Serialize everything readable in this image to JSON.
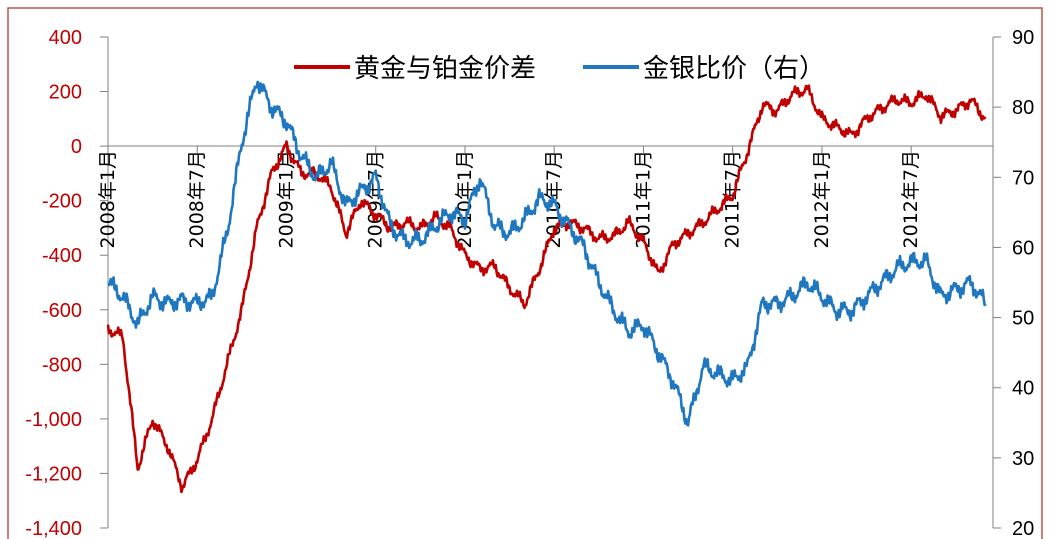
{
  "chart_data": {
    "type": "line",
    "title": "",
    "xlabel": "",
    "ylabel": "",
    "y2label": "",
    "x_ticks": [
      "2008年1月",
      "2008年7月",
      "2009年1月",
      "2009年7月",
      "2010年1月",
      "2010年7月",
      "2011年1月",
      "2011年7月",
      "2012年1月",
      "2012年7月"
    ],
    "y_left": {
      "ticks": [
        "400",
        "200",
        "0",
        "-200",
        "-400",
        "-600",
        "-800",
        "-1,000",
        "-1,200",
        "-1,400"
      ],
      "range": [
        -1400,
        400
      ],
      "color": "#c00000"
    },
    "y_right": {
      "ticks": [
        "90",
        "80",
        "70",
        "60",
        "50",
        "40",
        "30",
        "20"
      ],
      "range": [
        20,
        90
      ],
      "color": "#000000"
    },
    "legend_placement": "top-center",
    "grid": false,
    "series": [
      {
        "name": "黄金与铂金价差",
        "axis": "left",
        "color": "#c00000",
        "points": [
          [
            "2008-01",
            -670
          ],
          [
            "2008-02",
            -700
          ],
          [
            "2008-03",
            -1180
          ],
          [
            "2008-04",
            -1000
          ],
          [
            "2008-05",
            -1100
          ],
          [
            "2008-06",
            -1250
          ],
          [
            "2008-07",
            -1150
          ],
          [
            "2008-08",
            -1000
          ],
          [
            "2008-09",
            -800
          ],
          [
            "2008-10",
            -600
          ],
          [
            "2008-11",
            -300
          ],
          [
            "2008-12",
            -100
          ],
          [
            "2009-01",
            0
          ],
          [
            "2009-02",
            -100
          ],
          [
            "2009-03",
            -100
          ],
          [
            "2009-04",
            -150
          ],
          [
            "2009-05",
            -320
          ],
          [
            "2009-06",
            -200
          ],
          [
            "2009-07",
            -250
          ],
          [
            "2009-08",
            -300
          ],
          [
            "2009-09",
            -280
          ],
          [
            "2009-10",
            -300
          ],
          [
            "2009-11",
            -260
          ],
          [
            "2009-12",
            -300
          ],
          [
            "2010-01",
            -400
          ],
          [
            "2010-02",
            -450
          ],
          [
            "2010-03",
            -440
          ],
          [
            "2010-04",
            -520
          ],
          [
            "2010-05",
            -580
          ],
          [
            "2010-06",
            -450
          ],
          [
            "2010-07",
            -300
          ],
          [
            "2010-08",
            -280
          ],
          [
            "2010-09",
            -300
          ],
          [
            "2010-10",
            -340
          ],
          [
            "2010-11",
            -330
          ],
          [
            "2010-12",
            -280
          ],
          [
            "2011-01",
            -350
          ],
          [
            "2011-02",
            -470
          ],
          [
            "2011-03",
            -360
          ],
          [
            "2011-04",
            -320
          ],
          [
            "2011-05",
            -280
          ],
          [
            "2011-06",
            -230
          ],
          [
            "2011-07",
            -180
          ],
          [
            "2011-08",
            -20
          ],
          [
            "2011-09",
            150
          ],
          [
            "2011-10",
            130
          ],
          [
            "2011-11",
            190
          ],
          [
            "2011-12",
            210
          ],
          [
            "2012-01",
            100
          ],
          [
            "2012-02",
            70
          ],
          [
            "2012-03",
            40
          ],
          [
            "2012-04",
            100
          ],
          [
            "2012-05",
            140
          ],
          [
            "2012-06",
            170
          ],
          [
            "2012-07",
            160
          ],
          [
            "2012-08",
            190
          ],
          [
            "2012-09",
            110
          ],
          [
            "2012-10",
            130
          ],
          [
            "2012-11",
            170
          ],
          [
            "2012-12",
            100
          ]
        ]
      },
      {
        "name": "金银比价（右）",
        "axis": "right",
        "color": "#1f77c0",
        "points": [
          [
            "2008-01",
            55
          ],
          [
            "2008-02",
            53
          ],
          [
            "2008-03",
            49
          ],
          [
            "2008-04",
            53
          ],
          [
            "2008-05",
            52
          ],
          [
            "2008-06",
            52.5
          ],
          [
            "2008-07",
            52
          ],
          [
            "2008-08",
            53
          ],
          [
            "2008-09",
            62
          ],
          [
            "2008-10",
            75
          ],
          [
            "2008-11",
            84
          ],
          [
            "2008-12",
            80
          ],
          [
            "2009-01",
            78
          ],
          [
            "2009-02",
            73
          ],
          [
            "2009-03",
            70
          ],
          [
            "2009-04",
            72
          ],
          [
            "2009-05",
            66
          ],
          [
            "2009-06",
            68
          ],
          [
            "2009-07",
            70
          ],
          [
            "2009-08",
            63
          ],
          [
            "2009-09",
            61
          ],
          [
            "2009-10",
            61
          ],
          [
            "2009-11",
            63
          ],
          [
            "2009-12",
            65
          ],
          [
            "2010-01",
            64
          ],
          [
            "2010-02",
            70
          ],
          [
            "2010-03",
            63
          ],
          [
            "2010-04",
            62
          ],
          [
            "2010-05",
            64
          ],
          [
            "2010-06",
            67
          ],
          [
            "2010-07",
            66
          ],
          [
            "2010-08",
            63
          ],
          [
            "2010-09",
            60
          ],
          [
            "2010-10",
            55
          ],
          [
            "2010-11",
            51
          ],
          [
            "2010-12",
            48
          ],
          [
            "2011-01",
            49
          ],
          [
            "2011-02",
            45
          ],
          [
            "2011-03",
            41
          ],
          [
            "2011-04",
            35
          ],
          [
            "2011-05",
            43
          ],
          [
            "2011-06",
            42
          ],
          [
            "2011-07",
            41
          ],
          [
            "2011-08",
            43
          ],
          [
            "2011-09",
            52
          ],
          [
            "2011-10",
            52
          ],
          [
            "2011-11",
            53
          ],
          [
            "2011-12",
            55
          ],
          [
            "2012-01",
            53
          ],
          [
            "2012-02",
            51
          ],
          [
            "2012-03",
            51
          ],
          [
            "2012-04",
            53
          ],
          [
            "2012-05",
            55
          ],
          [
            "2012-06",
            57
          ],
          [
            "2012-07",
            58
          ],
          [
            "2012-08",
            58
          ],
          [
            "2012-09",
            53
          ],
          [
            "2012-10",
            54
          ],
          [
            "2012-11",
            55
          ],
          [
            "2012-12",
            52
          ]
        ]
      }
    ]
  }
}
